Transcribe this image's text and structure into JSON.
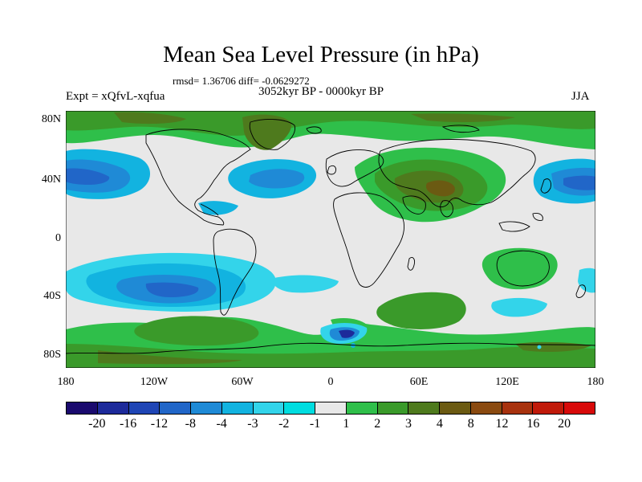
{
  "title": "Mean Sea Level Pressure (in hPa)",
  "stats": "rmsd= 1.36706 diff= -0.0629272",
  "experiment": "Expt = xQfvL-xqfua",
  "period": "3052kyr BP - 0000kyr BP",
  "season": "JJA",
  "lat_labels": [
    "80N",
    "40N",
    "0",
    "40S",
    "80S"
  ],
  "lon_labels": [
    "180",
    "120W",
    "60W",
    "0",
    "60E",
    "120E",
    "180"
  ],
  "colorbar": {
    "levels": [
      "-20",
      "-16",
      "-12",
      "-8",
      "-4",
      "-3",
      "-2",
      "-1",
      "1",
      "2",
      "3",
      "4",
      "8",
      "12",
      "16",
      "20"
    ],
    "colors": [
      "#1a0a6e",
      "#1d2a9a",
      "#1f45b5",
      "#2166c8",
      "#1f8ad6",
      "#12b3e0",
      "#33d4ea",
      "#00dde0",
      "#e8e8e8",
      "#2fbf4a",
      "#3a9a2a",
      "#4e7a1d",
      "#6b5a12",
      "#8a4a10",
      "#a8320e",
      "#c01a0a",
      "#d80a0a"
    ]
  },
  "map_colors": {
    "ocean_neutral": "#e8e8e8",
    "green": "#2fbf4a",
    "dark_green": "#3a9a2a",
    "olive": "#4e7a1d",
    "brown": "#6b5a12",
    "light_blue": "#12b3e0",
    "blue": "#1f8ad6",
    "dark_blue": "#2166c8"
  }
}
